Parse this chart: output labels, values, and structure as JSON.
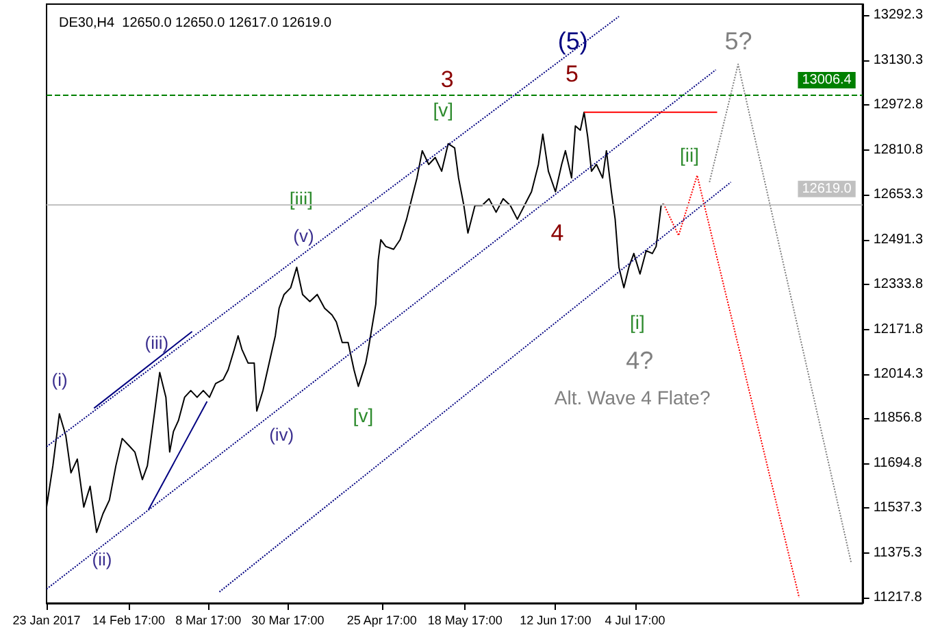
{
  "chart_data": {
    "type": "line",
    "title": "DE30,H4  12650.0 12650.0 12617.0 12619.0",
    "x": [
      "2017-01-23T00:00",
      "2017-01-24T18:00",
      "2017-01-26T13:00",
      "2017-01-28T08:00",
      "2017-01-29T18:00",
      "2017-01-31T12:00",
      "2017-02-02T07:00",
      "2017-02-04T01:00",
      "2017-02-05T20:00",
      "2017-02-07T14:00",
      "2017-02-09T09:00",
      "2017-02-11T04:00",
      "2017-02-12T22:00",
      "2017-02-14T17:00",
      "2017-02-16T10:00",
      "2017-02-18T12:00",
      "2017-02-19T21:00",
      "2017-02-21T22:00",
      "2017-02-23T07:00",
      "2017-02-25T00:00",
      "2017-02-26T01:00",
      "2017-02-27T02:00",
      "2017-02-28T11:00",
      "2017-03-02T04:00",
      "2017-03-03T21:00",
      "2017-03-05T15:00",
      "2017-03-07T08:00",
      "2017-03-09T01:00",
      "2017-03-10T18:00",
      "2017-03-12T20:00",
      "2017-03-14T05:00",
      "2017-03-15T22:00",
      "2017-03-16T23:00",
      "2017-03-18T00:00",
      "2017-03-19T17:00",
      "2017-03-21T10:00",
      "2017-03-22T03:00",
      "2017-03-23T20:00",
      "2017-03-25T13:00",
      "2017-03-27T06:00",
      "2017-03-28T07:00",
      "2017-03-29T16:00",
      "2017-03-31T12:00",
      "2017-04-02T04:00",
      "2017-04-03T19:00",
      "2017-04-05T19:00",
      "2017-04-07T20:00",
      "2017-04-09T21:00",
      "2017-04-11T22:00",
      "2017-04-13T03:00",
      "2017-04-14T18:00",
      "2017-04-16T09:00",
      "2017-04-18T00:00",
      "2017-04-19T05:00",
      "2017-04-21T06:00",
      "2017-04-21T20:00",
      "2017-04-24T01:00",
      "2017-04-24T17:00",
      "2017-04-25T10:00",
      "2017-04-26T19:00",
      "2017-04-28T23:00",
      "2017-04-30T18:00",
      "2017-05-02T13:00",
      "2017-05-03T23:00",
      "2017-05-05T10:00",
      "2017-05-06T21:00",
      "2017-05-08T16:00",
      "2017-05-10T11:00",
      "2017-05-12T06:00",
      "2017-05-14T01:00",
      "2017-05-15T20:00",
      "2017-05-16T22:00",
      "2017-05-18T09:00",
      "2017-05-19T12:00",
      "2017-05-21T11:00",
      "2017-05-23T10:00",
      "2017-05-25T08:00",
      "2017-05-27T07:00",
      "2017-05-29T06:00",
      "2017-05-31T05:00",
      "2017-06-02T04:00",
      "2017-06-04T03:00",
      "2017-06-06T02:00",
      "2017-06-08T00:00",
      "2017-06-09T05:00",
      "2017-06-10T18:00",
      "2017-06-12T17:00",
      "2017-06-14T10:00",
      "2017-06-15T11:00",
      "2017-06-17T04:00",
      "2017-06-18T05:00",
      "2017-06-19T14:00",
      "2017-06-20T15:00",
      "2017-06-21T15:00",
      "2017-06-22T16:00",
      "2017-06-24T01:00",
      "2017-06-25T18:00",
      "2017-06-26T19:00",
      "2017-06-28T04:00",
      "2017-06-29T05:00",
      "2017-06-30T06:00",
      "2017-07-01T15:00",
      "2017-07-03T00:00",
      "2017-07-04T09:00",
      "2017-07-06T02:00",
      "2017-07-07T19:00",
      "2017-07-09T12:00",
      "2017-07-10T13:00",
      "2017-07-11T06:00",
      "2017-07-11T22:00",
      "2017-07-12T15:00"
    ],
    "series": [
      {
        "color": "#000000",
        "line_style": "solid",
        "values": [
          11540,
          11687,
          11872,
          11794,
          11662,
          11711,
          11540,
          11614,
          11450,
          11516,
          11565,
          11687,
          11784,
          11760,
          11736,
          11638,
          11687,
          11882,
          12019,
          11931,
          11736,
          11809,
          11848,
          11931,
          11955,
          11931,
          11955,
          11931,
          11980,
          11994,
          12029,
          12102,
          12150,
          12102,
          12053,
          12053,
          11882,
          11955,
          12053,
          12150,
          12248,
          12297,
          12321,
          12394,
          12297,
          12272,
          12297,
          12248,
          12224,
          12199,
          12126,
          12126,
          12029,
          11970,
          12053,
          12092,
          12263,
          12419,
          12492,
          12468,
          12458,
          12492,
          12565,
          12638,
          12712,
          12809,
          12760,
          12785,
          12736,
          12834,
          12819,
          12712,
          12614,
          12516,
          12614,
          12614,
          12638,
          12590,
          12638,
          12614,
          12565,
          12614,
          12663,
          12760,
          12868,
          12736,
          12663,
          12760,
          12809,
          12712,
          12897,
          12882,
          12946,
          12858,
          12736,
          12760,
          12712,
          12809,
          12663,
          12565,
          12394,
          12321,
          12394,
          12443,
          12370,
          12453,
          12443,
          12468,
          12541,
          12614,
          12619
        ]
      },
      {
        "color": "#ff0000",
        "line_style": "dotted",
        "x": [
          "2017-07-12T15:00",
          "2017-07-16T18:00",
          "2017-07-21T21:00",
          "2017-08-19T02:00"
        ],
        "values": [
          12619,
          12507,
          12721,
          11218
        ]
      },
      {
        "color": "#808080",
        "line_style": "dotted",
        "x": [
          "2017-07-25T07:00",
          "2017-08-02T05:00",
          "2017-09-02T12:00"
        ],
        "values": [
          12697,
          13117,
          11340
        ]
      },
      {
        "color": "#000080",
        "line_style": "dotted",
        "x": [
          "2017-01-23T00:00",
          "2017-06-30T06:00"
        ],
        "values": [
          11755,
          13287
        ]
      },
      {
        "color": "#000080",
        "line_style": "dotted",
        "x": [
          "2017-01-23T00:00",
          "2017-07-27T01:00"
        ],
        "values": [
          11248,
          13097
        ]
      },
      {
        "color": "#000080",
        "line_style": "dotted",
        "x": [
          "2017-03-11T19:00",
          "2017-07-31T05:00"
        ],
        "values": [
          11238,
          12697
        ]
      },
      {
        "color": "#000080",
        "line_style": "solid",
        "x": [
          "2017-02-05T03:00",
          "2017-03-04T06:00"
        ],
        "values": [
          11892,
          12165
        ]
      },
      {
        "color": "#000080",
        "line_style": "solid",
        "x": [
          "2017-02-20T05:00",
          "2017-03-08T09:00"
        ],
        "values": [
          11531,
          11916
        ]
      },
      {
        "color": "#ff0000",
        "line_style": "solid",
        "x": [
          "2017-06-20T15:00",
          "2017-07-27T10:00"
        ],
        "values": [
          12946,
          12946
        ]
      }
    ],
    "xlim": [
      "2017-01-23T00:00",
      "2017-09-05T14:00"
    ],
    "xticks": [
      {
        "value": "2017-01-23T00:00",
        "label": "23 Jan 2017"
      },
      {
        "value": "2017-02-14T17:00",
        "label": "14 Feb 17:00"
      },
      {
        "value": "2017-03-08T17:00",
        "label": "8 Mar 17:00"
      },
      {
        "value": "2017-03-30T17:00",
        "label": "30 Mar 17:00"
      },
      {
        "value": "2017-04-25T17:00",
        "label": "25 Apr 17:00"
      },
      {
        "value": "2017-05-18T17:00",
        "label": "18 May 17:00"
      },
      {
        "value": "2017-06-12T17:00",
        "label": "12 Jun 17:00"
      },
      {
        "value": "2017-07-04T17:00",
        "label": "4 Jul 17:00"
      }
    ],
    "ylim": [
      11198,
      13331
    ],
    "yticks": [
      11217.8,
      11375.3,
      11537.3,
      11694.8,
      11856.8,
      12014.3,
      12171.8,
      12333.8,
      12491.3,
      12653.3,
      12810.8,
      12972.8,
      13130.3,
      13292.3
    ],
    "ref_lines": [
      {
        "axis": "y",
        "value": 13006.4,
        "label": "13006.4",
        "color": "#008000",
        "line_style": "dashed"
      },
      {
        "axis": "y",
        "value": 12619.0,
        "label": "12619.0",
        "color": "#c0c0c0",
        "line_style": "solid"
      }
    ],
    "annotations": [
      "(i)",
      "(ii)",
      "(iii)",
      "(iv)",
      "(v)",
      "[iii]",
      "[v]",
      "[v]",
      "3",
      "(5)",
      "5",
      "4",
      "[i]",
      "[ii]",
      "4?",
      "5?",
      "Alt. Wave 4 Flate?"
    ],
    "grid": false,
    "marker": "none"
  }
}
